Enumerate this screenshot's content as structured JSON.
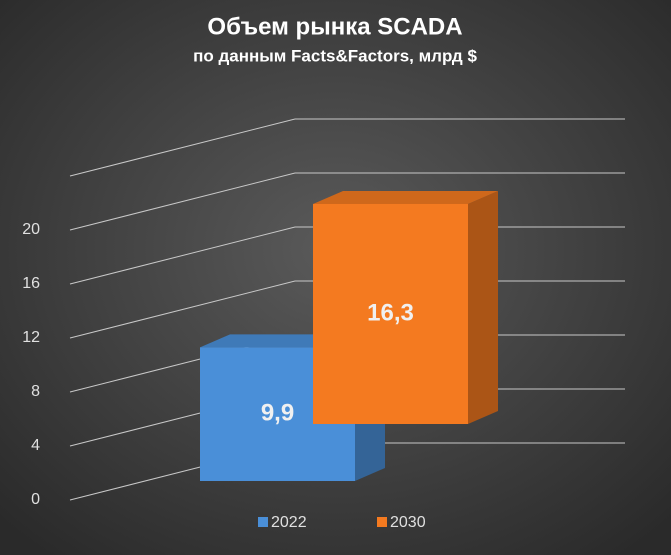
{
  "chart_data": {
    "type": "bar3d",
    "title": "Объем рынка SCADA",
    "subtitle": "по данным  Facts&Factors, млрд $",
    "series": [
      {
        "name": "2022",
        "color": "#4a8fd8",
        "values": [
          9.9
        ],
        "value_labels": [
          "9,9"
        ]
      },
      {
        "name": "2030",
        "color": "#f47a20",
        "values": [
          16.3
        ],
        "value_labels": [
          "16,3"
        ]
      }
    ],
    "ylim": [
      0,
      24
    ],
    "yticks": [
      0,
      4,
      8,
      12,
      16,
      20
    ],
    "grid": true,
    "legend": "bottom"
  }
}
